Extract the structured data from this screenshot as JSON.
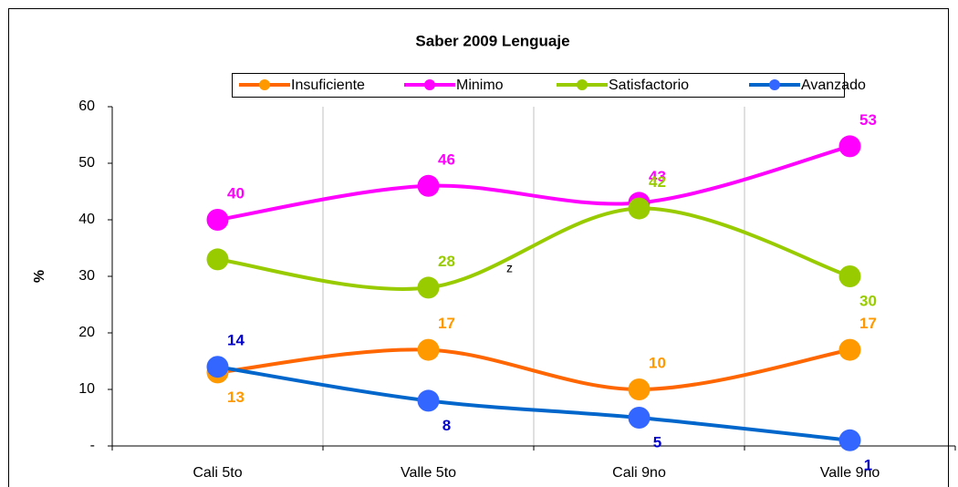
{
  "chart_data": {
    "type": "line",
    "title": "Saber 2009 Lenguaje",
    "ylabel": "%",
    "categories": [
      "Cali 5to",
      "Valle 5to",
      "Cali 9no",
      "Valle 9no"
    ],
    "series": [
      {
        "name": "Insuficiente",
        "color": "#ff6600",
        "marker_color": "#ff9900",
        "label_color": "#ff9900",
        "values": [
          13,
          17,
          10,
          17
        ]
      },
      {
        "name": "Minimo",
        "color": "#ff00ff",
        "marker_color": "#ff00ff",
        "label_color": "#ff00ff",
        "values": [
          40,
          46,
          43,
          53
        ]
      },
      {
        "name": "Satisfactorio",
        "color": "#99cc00",
        "marker_color": "#99cc00",
        "label_color": "#99cc00",
        "values": [
          33,
          28,
          42,
          30
        ],
        "value_labels": [
          null,
          "28",
          "42",
          "30"
        ]
      },
      {
        "name": "Avanzado",
        "color": "#0066cc",
        "marker_color": "#3366ff",
        "label_color": "#0000cc",
        "values": [
          14,
          8,
          5,
          1
        ]
      }
    ],
    "annotation": "z",
    "ylim": [
      0,
      60
    ],
    "yticks": [
      {
        "value": 0,
        "label": "-"
      },
      10,
      20,
      30,
      40,
      50,
      60
    ],
    "grid": true,
    "smooth": true,
    "legend": "top"
  }
}
